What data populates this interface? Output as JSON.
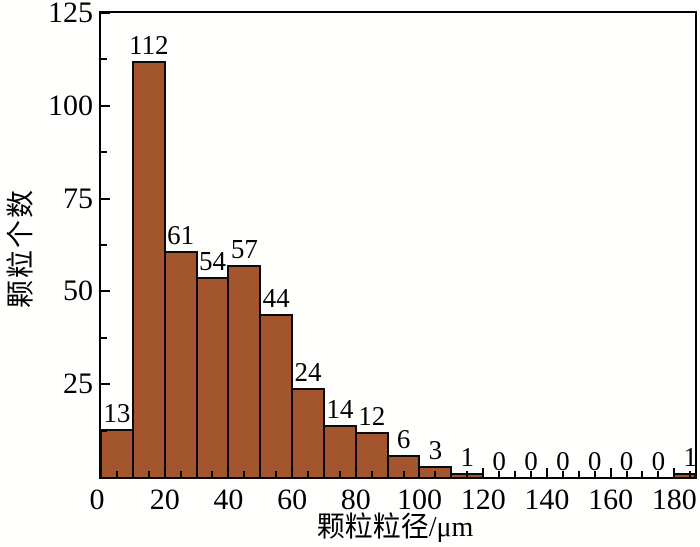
{
  "figure_title": "particle size distribution histogram",
  "chart_data": {
    "type": "bar",
    "title": "",
    "xlabel": "颗粒粒径/μm",
    "ylabel": "颗粒个数",
    "bin_width": 10,
    "bin_starts": [
      0,
      10,
      20,
      30,
      40,
      50,
      60,
      70,
      80,
      90,
      100,
      110,
      120,
      130,
      140,
      150,
      160,
      170,
      180
    ],
    "values": [
      13,
      112,
      61,
      54,
      57,
      44,
      24,
      14,
      12,
      6,
      3,
      1,
      0,
      0,
      0,
      0,
      0,
      0,
      1
    ],
    "bar_value_labels": [
      "13",
      "112",
      "61",
      "54",
      "57",
      "44",
      "24",
      "14",
      "12",
      "6",
      "3",
      "1",
      "0",
      "0",
      "0",
      "0",
      "0",
      "0",
      "1"
    ],
    "xlim": [
      0,
      186.5
    ],
    "ylim": [
      0,
      125
    ],
    "x_tick_labels": [
      "0",
      "20",
      "40",
      "60",
      "80",
      "100",
      "120",
      "140",
      "160",
      "180"
    ],
    "x_tick_values": [
      0,
      20,
      40,
      60,
      80,
      100,
      120,
      140,
      160,
      180
    ],
    "x_minor_step": 5,
    "y_tick_labels": [
      "25",
      "50",
      "75",
      "100",
      "125"
    ],
    "y_tick_values": [
      25,
      50,
      75,
      100,
      125
    ],
    "y_minor_values": [
      12.5,
      37.5,
      62.5,
      87.5,
      112.5
    ],
    "grid": "off",
    "legend": "none",
    "frame": "full-box",
    "tick_direction": "in",
    "colors": {
      "bar_fill": "#a3562e",
      "bar_edge": "#0a0a0a",
      "frame": "#000000",
      "text": "#000000",
      "background": "#fffffe"
    }
  }
}
